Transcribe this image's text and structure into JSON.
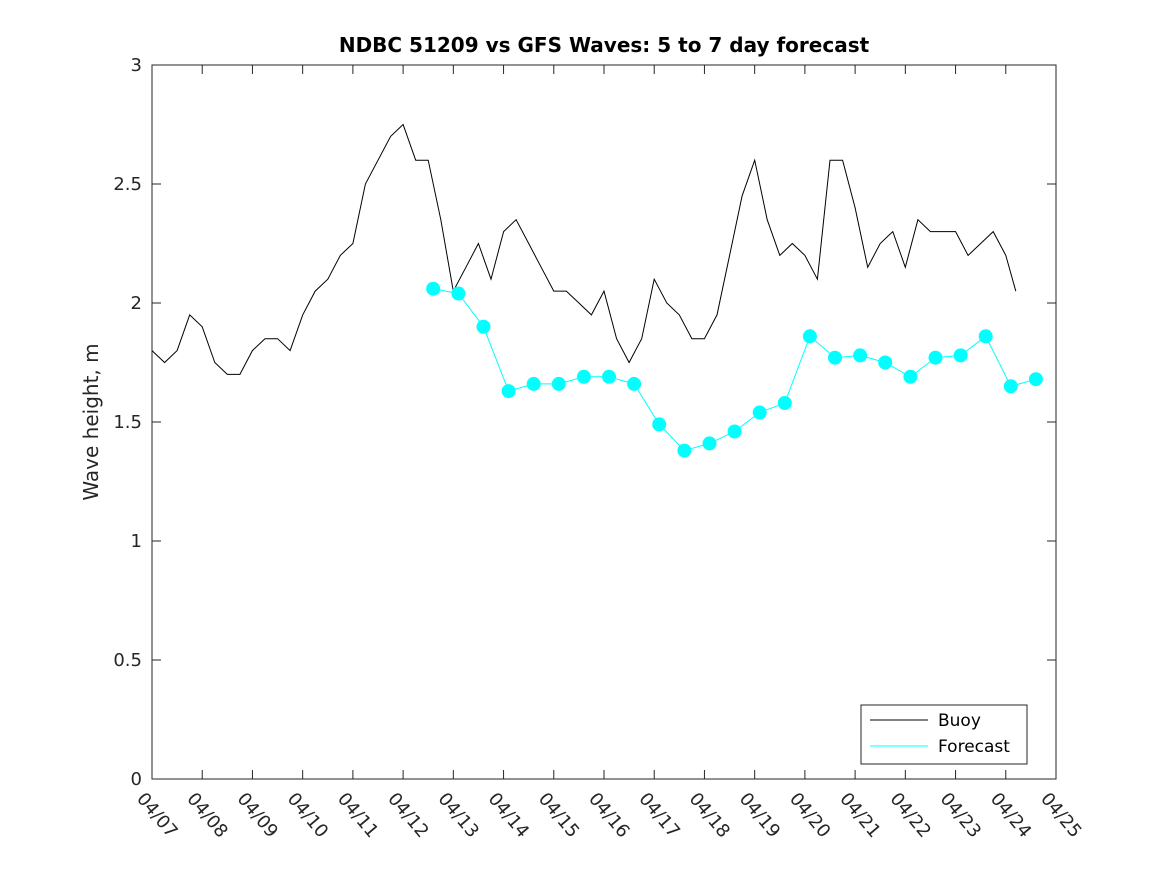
{
  "chart_data": {
    "type": "line",
    "title": "NDBC 51209 vs GFS Waves: 5 to 7 day forecast",
    "xlabel": "",
    "ylabel": "Wave height, m",
    "xlim": [
      0,
      18
    ],
    "ylim": [
      0,
      3
    ],
    "yticks": [
      0,
      0.5,
      1,
      1.5,
      2,
      2.5,
      3
    ],
    "ytick_labels": [
      "0",
      "0.5",
      "1",
      "1.5",
      "2",
      "2.5",
      "3"
    ],
    "xticks": [
      0,
      1,
      2,
      3,
      4,
      5,
      6,
      7,
      8,
      9,
      10,
      11,
      12,
      13,
      14,
      15,
      16,
      17,
      18
    ],
    "xtick_labels": [
      "04/07",
      "04/08",
      "04/09",
      "04/10",
      "04/11",
      "04/12",
      "04/13",
      "04/14",
      "04/15",
      "04/16",
      "04/17",
      "04/18",
      "04/19",
      "04/20",
      "04/21",
      "04/22",
      "04/23",
      "04/24",
      "04/25"
    ],
    "grid": false,
    "legend_position": "bottom-right",
    "colors": {
      "buoy": "#000000",
      "forecast": "#00ffff"
    },
    "legend": [
      {
        "label": "Buoy",
        "color": "#000000"
      },
      {
        "label": "Forecast",
        "color": "#00ffff"
      }
    ],
    "series": [
      {
        "name": "Buoy",
        "color": "#000000",
        "x": [
          0,
          0.25,
          0.5,
          0.75,
          1,
          1.25,
          1.5,
          1.75,
          2,
          2.25,
          2.5,
          2.75,
          3,
          3.25,
          3.5,
          3.75,
          4,
          4.25,
          4.5,
          4.75,
          5,
          5.25,
          5.5,
          5.75,
          6,
          6.25,
          6.5,
          6.75,
          7,
          7.25,
          7.5,
          7.75,
          8,
          8.25,
          8.5,
          8.75,
          9,
          9.25,
          9.5,
          9.75,
          10,
          10.25,
          10.5,
          10.75,
          11,
          11.25,
          11.5,
          11.75,
          12,
          12.25,
          12.5,
          12.75,
          13,
          13.25,
          13.5,
          13.75,
          14,
          14.25,
          14.5,
          14.75,
          15,
          15.25,
          15.5,
          15.75,
          16,
          16.25,
          16.5,
          16.75,
          17,
          17.2
        ],
        "y": [
          1.8,
          1.75,
          1.8,
          1.95,
          1.9,
          1.75,
          1.7,
          1.7,
          1.8,
          1.85,
          1.85,
          1.8,
          1.95,
          2.05,
          2.1,
          2.2,
          2.25,
          2.5,
          2.6,
          2.7,
          2.75,
          2.6,
          2.6,
          2.35,
          2.05,
          2.15,
          2.25,
          2.1,
          2.3,
          2.35,
          2.25,
          2.15,
          2.05,
          2.05,
          2.0,
          1.95,
          2.05,
          1.85,
          1.75,
          1.85,
          2.1,
          2.0,
          1.95,
          1.85,
          1.85,
          1.95,
          2.2,
          2.45,
          2.6,
          2.35,
          2.2,
          2.25,
          2.2,
          2.1,
          2.6,
          2.6,
          2.4,
          2.15,
          2.25,
          2.3,
          2.15,
          2.35,
          2.3,
          2.3,
          2.3,
          2.2,
          2.25,
          2.3,
          2.2,
          2.05
        ]
      },
      {
        "name": "Forecast",
        "color": "#00ffff",
        "x": [
          5.6,
          6.1,
          6.6,
          7.1,
          7.6,
          8.1,
          8.6,
          9.1,
          9.6,
          10.1,
          10.6,
          11.1,
          11.6,
          12.1,
          12.6,
          13.1,
          13.6,
          14.1,
          14.6,
          15.1,
          15.6,
          16.1,
          16.6,
          17.1,
          17.6
        ],
        "y": [
          2.06,
          2.04,
          1.9,
          1.63,
          1.66,
          1.66,
          1.69,
          1.69,
          1.66,
          1.49,
          1.38,
          1.41,
          1.46,
          1.54,
          1.58,
          1.86,
          1.77,
          1.78,
          1.75,
          1.69,
          1.77,
          1.78,
          1.86,
          1.65,
          1.68
        ]
      }
    ]
  }
}
